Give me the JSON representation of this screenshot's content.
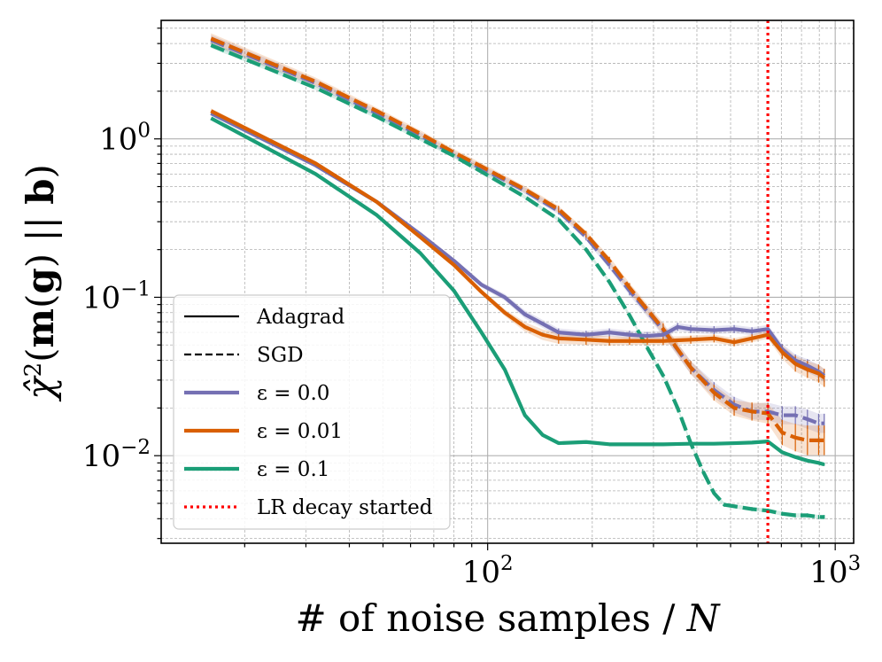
{
  "chart_data": {
    "type": "line",
    "title": "",
    "xlabel": "# of noise samples / N",
    "ylabel": "χ̂²(m(g) || b)",
    "xscale": "log",
    "yscale": "log",
    "xlim": [
      11.5,
      1130
    ],
    "ylim": [
      0.0028,
      5.6
    ],
    "grid": true,
    "legend_position": "lower-left",
    "x_ticks": [
      {
        "value": 100,
        "base": "10",
        "exp": "2"
      },
      {
        "value": 1000,
        "base": "10",
        "exp": "3"
      }
    ],
    "y_ticks": [
      {
        "value": 1,
        "base": "10",
        "exp": "0"
      },
      {
        "value": 0.1,
        "base": "10",
        "exp": "−1"
      },
      {
        "value": 0.01,
        "base": "10",
        "exp": "−2"
      }
    ],
    "vline": {
      "x": 640,
      "label": "LR decay started",
      "color": "#ff0000"
    },
    "legend": [
      {
        "label": "Adagrad",
        "style": "solid",
        "color": "#000000"
      },
      {
        "label": "SGD",
        "style": "dashed",
        "color": "#000000"
      },
      {
        "label": "ε = 0.0",
        "style": "solid",
        "color": "#7570b3"
      },
      {
        "label": "ε = 0.01",
        "style": "solid",
        "color": "#d95f02"
      },
      {
        "label": "ε = 0.1",
        "style": "solid",
        "color": "#1b9e77"
      },
      {
        "label": "LR decay started",
        "style": "dotted",
        "color": "#ff0000"
      }
    ],
    "series": [
      {
        "name": "SGD, ε = 0.0",
        "optimizer": "SGD",
        "epsilon": "0.0",
        "color": "#7570b3",
        "style": "dashed",
        "x": [
          16,
          32,
          48,
          64,
          80,
          96,
          112,
          128,
          160,
          192,
          224,
          256,
          320,
          384,
          448,
          512,
          576,
          640,
          704,
          768,
          832,
          896,
          930
        ],
        "y": [
          4.2,
          2.25,
          1.45,
          1.05,
          0.8,
          0.65,
          0.55,
          0.47,
          0.35,
          0.24,
          0.16,
          0.11,
          0.062,
          0.036,
          0.026,
          0.021,
          0.019,
          0.019,
          0.018,
          0.018,
          0.017,
          0.016,
          0.016
        ],
        "err": [
          0.08,
          0.06,
          0.05,
          0.05,
          0.05,
          0.05,
          0.05,
          0.05,
          0.05,
          0.05,
          0.06,
          0.07,
          0.09,
          0.1,
          0.12,
          0.12,
          0.12,
          0.14,
          0.14,
          0.14,
          0.15,
          0.15,
          0.15
        ]
      },
      {
        "name": "SGD, ε = 0.01",
        "optimizer": "SGD",
        "epsilon": "0.01",
        "color": "#d95f02",
        "style": "dashed",
        "x": [
          16,
          32,
          48,
          64,
          80,
          96,
          112,
          128,
          160,
          192,
          224,
          256,
          320,
          384,
          448,
          512,
          576,
          640,
          704,
          768,
          832,
          896,
          930
        ],
        "y": [
          4.3,
          2.3,
          1.5,
          1.08,
          0.82,
          0.67,
          0.56,
          0.48,
          0.36,
          0.25,
          0.17,
          0.115,
          0.063,
          0.036,
          0.025,
          0.02,
          0.019,
          0.0185,
          0.014,
          0.013,
          0.0125,
          0.0125,
          0.0125
        ],
        "err": [
          0.08,
          0.06,
          0.05,
          0.05,
          0.05,
          0.05,
          0.05,
          0.05,
          0.05,
          0.05,
          0.06,
          0.07,
          0.09,
          0.1,
          0.12,
          0.12,
          0.14,
          0.16,
          0.2,
          0.22,
          0.24,
          0.24,
          0.24
        ]
      },
      {
        "name": "SGD, ε = 0.1",
        "optimizer": "SGD",
        "epsilon": "0.1",
        "color": "#1b9e77",
        "style": "dashed",
        "x": [
          16,
          32,
          48,
          64,
          80,
          96,
          112,
          128,
          160,
          192,
          224,
          256,
          288,
          320,
          352,
          384,
          416,
          448,
          480,
          576,
          640,
          704,
          768,
          832,
          896,
          930
        ],
        "y": [
          3.9,
          2.1,
          1.38,
          1.0,
          0.78,
          0.62,
          0.51,
          0.43,
          0.31,
          0.2,
          0.125,
          0.077,
          0.048,
          0.032,
          0.02,
          0.012,
          0.008,
          0.0058,
          0.0049,
          0.0046,
          0.0045,
          0.0043,
          0.0042,
          0.0042,
          0.0041,
          0.0041
        ],
        "err": [
          0.04,
          0.03,
          0.03,
          0.03,
          0.03,
          0.03,
          0.03,
          0.03,
          0.03,
          0.03,
          0.03,
          0.03,
          0.03,
          0.03,
          0.03,
          0.03,
          0.03,
          0.03,
          0.03,
          0.03,
          0.03,
          0.03,
          0.03,
          0.03,
          0.03,
          0.03
        ]
      },
      {
        "name": "Adagrad, ε = 0.0",
        "optimizer": "Adagrad",
        "epsilon": "0.0",
        "color": "#7570b3",
        "style": "solid",
        "x": [
          16,
          32,
          48,
          64,
          80,
          96,
          112,
          128,
          144,
          160,
          192,
          224,
          256,
          288,
          320,
          352,
          384,
          448,
          512,
          576,
          640,
          704,
          768,
          832,
          896,
          930
        ],
        "y": [
          1.45,
          0.68,
          0.4,
          0.25,
          0.17,
          0.12,
          0.1,
          0.078,
          0.068,
          0.06,
          0.058,
          0.06,
          0.058,
          0.057,
          0.058,
          0.065,
          0.063,
          0.062,
          0.063,
          0.061,
          0.063,
          0.047,
          0.04,
          0.037,
          0.034,
          0.032
        ],
        "err": [
          0.04,
          0.03,
          0.03,
          0.03,
          0.03,
          0.04,
          0.05,
          0.06,
          0.06,
          0.06,
          0.06,
          0.06,
          0.06,
          0.06,
          0.06,
          0.06,
          0.06,
          0.06,
          0.06,
          0.06,
          0.06,
          0.08,
          0.09,
          0.1,
          0.1,
          0.1
        ]
      },
      {
        "name": "Adagrad, ε = 0.01",
        "optimizer": "Adagrad",
        "epsilon": "0.01",
        "color": "#d95f02",
        "style": "solid",
        "x": [
          16,
          32,
          48,
          64,
          80,
          96,
          112,
          128,
          144,
          160,
          192,
          224,
          256,
          288,
          320,
          384,
          448,
          512,
          576,
          640,
          704,
          768,
          832,
          896,
          930
        ],
        "y": [
          1.5,
          0.7,
          0.4,
          0.24,
          0.16,
          0.108,
          0.08,
          0.065,
          0.058,
          0.055,
          0.054,
          0.053,
          0.053,
          0.053,
          0.053,
          0.054,
          0.055,
          0.052,
          0.055,
          0.058,
          0.045,
          0.038,
          0.035,
          0.033,
          0.031
        ],
        "err": [
          0.04,
          0.03,
          0.03,
          0.03,
          0.03,
          0.04,
          0.05,
          0.07,
          0.08,
          0.08,
          0.08,
          0.07,
          0.06,
          0.06,
          0.06,
          0.06,
          0.06,
          0.06,
          0.06,
          0.06,
          0.1,
          0.12,
          0.13,
          0.14,
          0.14
        ]
      },
      {
        "name": "Adagrad, ε = 0.1",
        "optimizer": "Adagrad",
        "epsilon": "0.1",
        "color": "#1b9e77",
        "style": "solid",
        "x": [
          16,
          32,
          48,
          64,
          80,
          96,
          112,
          128,
          144,
          160,
          192,
          224,
          256,
          320,
          384,
          448,
          512,
          576,
          640,
          704,
          768,
          832,
          896,
          930
        ],
        "y": [
          1.35,
          0.6,
          0.33,
          0.19,
          0.11,
          0.06,
          0.035,
          0.018,
          0.0135,
          0.012,
          0.0122,
          0.0118,
          0.0118,
          0.0118,
          0.0119,
          0.0119,
          0.012,
          0.0121,
          0.0123,
          0.0105,
          0.0098,
          0.0093,
          0.009,
          0.0088
        ],
        "err": [
          0.02,
          0.02,
          0.02,
          0.02,
          0.02,
          0.02,
          0.02,
          0.02,
          0.02,
          0.02,
          0.02,
          0.02,
          0.02,
          0.02,
          0.02,
          0.02,
          0.02,
          0.02,
          0.02,
          0.02,
          0.02,
          0.02,
          0.02,
          0.02
        ]
      }
    ]
  }
}
